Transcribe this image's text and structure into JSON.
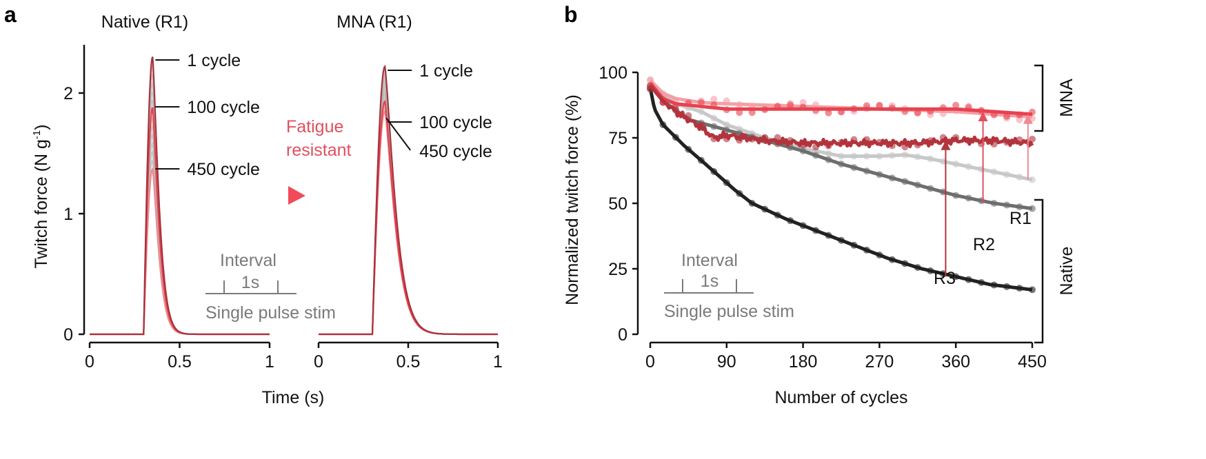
{
  "panel_labels": {
    "a": "a",
    "b": "b"
  },
  "chart_data": [
    {
      "type": "line",
      "panel": "a",
      "subplots": [
        {
          "title": "Native (R1)",
          "peaks": [
            {
              "label": "1 cycle",
              "cycle": 1,
              "peak": 2.3,
              "color": "#a8323c"
            },
            {
              "label": "100 cycle",
              "cycle": 100,
              "peak": 1.88,
              "color": "#e0434f"
            },
            {
              "label": "450 cycle",
              "cycle": 450,
              "peak": 1.37,
              "color": "#f08a92"
            }
          ],
          "peak_time": 0.35,
          "onset": 0.3
        },
        {
          "title": "MNA (R1)",
          "peaks": [
            {
              "label": "1 cycle",
              "cycle": 1,
              "peak": 2.22,
              "color": "#a8323c"
            },
            {
              "label": "100 cycle",
              "cycle": 100,
              "peak": 1.93,
              "color": "#e0434f"
            },
            {
              "label": "450 cycle",
              "cycle": 450,
              "peak": 1.85,
              "color": "#f08a92"
            }
          ],
          "peak_time": 0.37,
          "onset": 0.3
        }
      ],
      "xlabel": "Time (s)",
      "ylabel": "Twitch force (N g",
      "ylabel_sup": "-1",
      "ylabel_end": ")",
      "xlim": [
        0,
        1
      ],
      "ylim": [
        0,
        2.4
      ],
      "xticks": [
        "0",
        "0.5",
        "1"
      ],
      "yticks": [
        "0",
        "1",
        "2"
      ],
      "annotation": {
        "line1": "Fatigue",
        "line2": "resistant",
        "color": "#e0505e"
      },
      "inset": {
        "title": "Interval",
        "interval": "1s",
        "caption": "Single pulse stim"
      }
    },
    {
      "type": "line",
      "panel": "b",
      "xlabel": "Number of cycles",
      "ylabel": "Normalized twitch force (%)",
      "xlim": [
        0,
        450
      ],
      "ylim": [
        0,
        100
      ],
      "xticks": [
        "0",
        "90",
        "180",
        "270",
        "360",
        "450"
      ],
      "yticks": [
        "0",
        "25",
        "50",
        "75",
        "100"
      ],
      "series": [
        {
          "group": "Native",
          "rep": "R1",
          "color": "#c8c8c8",
          "x": [
            0,
            15,
            30,
            60,
            90,
            135,
            180,
            225,
            270,
            300,
            330,
            360,
            390,
            420,
            450
          ],
          "y": [
            97,
            92,
            88,
            85,
            80,
            75,
            71,
            68,
            68,
            68.5,
            67,
            65,
            63,
            61,
            59
          ]
        },
        {
          "group": "Native",
          "rep": "R2",
          "color": "#6e6e6e",
          "x": [
            0,
            20,
            45,
            90,
            135,
            180,
            225,
            270,
            315,
            360,
            405,
            450
          ],
          "y": [
            95,
            88,
            82,
            78,
            74,
            70,
            65,
            61,
            57,
            53,
            50,
            48
          ]
        },
        {
          "group": "Native",
          "rep": "R3",
          "color": "#222222",
          "x": [
            0,
            5,
            15,
            40,
            65,
            100,
            120,
            160,
            200,
            240,
            280,
            320,
            360,
            400,
            450
          ],
          "y": [
            94,
            86,
            80,
            72,
            65,
            55,
            50,
            44,
            39,
            34,
            29,
            25,
            22,
            19,
            17
          ]
        },
        {
          "group": "MNA",
          "rep": "R1",
          "color": "#f2a0a6",
          "x": [
            0,
            15,
            30,
            60,
            90,
            180,
            270,
            360,
            450
          ],
          "y": [
            97,
            92,
            90,
            88.5,
            88,
            87,
            86,
            85,
            83
          ]
        },
        {
          "group": "MNA",
          "rep": "R2",
          "color": "#e8424f",
          "x": [
            0,
            15,
            30,
            60,
            90,
            180,
            270,
            360,
            450
          ],
          "y": [
            96,
            90,
            88,
            87,
            86,
            86,
            86,
            86,
            84
          ]
        },
        {
          "group": "MNA",
          "rep": "R3",
          "color": "#b3343d",
          "x": [
            0,
            15,
            30,
            60,
            75,
            90,
            135,
            180,
            225,
            270,
            315,
            360,
            405,
            450
          ],
          "y": [
            95,
            89,
            85,
            79,
            75,
            76,
            74,
            73,
            73,
            73,
            73,
            74,
            74,
            73
          ]
        }
      ],
      "arrows": [
        {
          "label": "R1",
          "x": 445,
          "from": 59,
          "to": 84,
          "color": "#f08a92"
        },
        {
          "label": "R2",
          "x": 392,
          "from": 50,
          "to": 85,
          "color": "#e0505e"
        },
        {
          "label": "R3",
          "x": 348,
          "from": 22,
          "to": 74,
          "color": "#b3343d"
        }
      ],
      "brackets": [
        {
          "label": "MNA"
        },
        {
          "label": "Native"
        }
      ],
      "inset": {
        "title": "Interval",
        "interval": "1s",
        "caption": "Single pulse stim"
      }
    }
  ]
}
